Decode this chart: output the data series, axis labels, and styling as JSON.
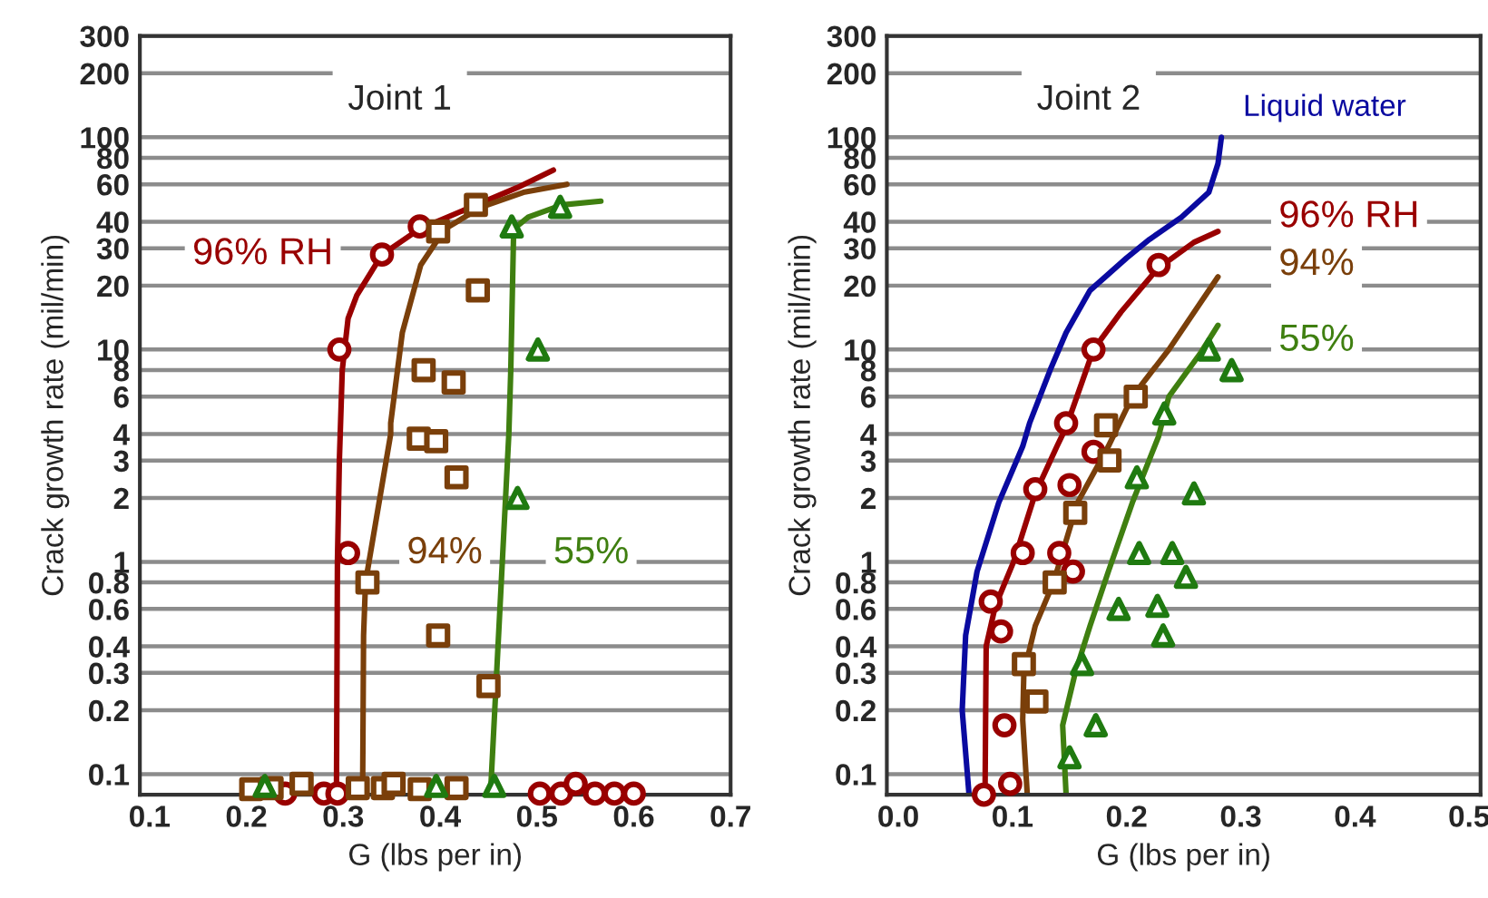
{
  "chart_data": [
    {
      "type": "line",
      "title": "Joint 1",
      "xlabel": "G (lbs per in)",
      "ylabel": "Crack growth rate (mil/min)",
      "log": "y",
      "grid": "y",
      "xlim": [
        0.09,
        0.7
      ],
      "xticks": [
        0.1,
        0.2,
        0.3,
        0.4,
        0.5,
        0.6,
        0.7
      ],
      "ylim": [
        0.08,
        300
      ],
      "yticks": [
        0.1,
        0.2,
        0.3,
        0.4,
        0.6,
        0.8,
        1,
        2,
        3,
        4,
        6,
        8,
        10,
        20,
        30,
        40,
        60,
        80,
        100,
        200,
        300
      ],
      "series": [
        {
          "name": "96% RH",
          "color": "#990000",
          "x": [
            0.293,
            0.294,
            0.296,
            0.299,
            0.305,
            0.314,
            0.34,
            0.379,
            0.48,
            0.517
          ],
          "values": [
            0.08,
            1,
            3,
            8,
            14,
            18,
            28,
            37,
            58,
            70
          ]
        },
        {
          "name": "94%",
          "color": "#7a3f0a",
          "x": [
            0.32,
            0.321,
            0.323,
            0.349,
            0.349,
            0.361,
            0.38,
            0.405,
            0.443,
            0.486,
            0.531
          ],
          "values": [
            0.08,
            0.45,
            0.8,
            4,
            4.5,
            12,
            25,
            37,
            47,
            55,
            60
          ]
        },
        {
          "name": "55%",
          "color": "#3f7f10",
          "x": [
            0.452,
            0.471,
            0.473,
            0.476,
            0.491,
            0.526,
            0.566
          ],
          "values": [
            0.08,
            4,
            8,
            37,
            42,
            48,
            50
          ]
        },
        {
          "type": "scatter",
          "marker": "circle",
          "color": "#990000",
          "x": [
            0.296,
            0.34,
            0.379,
            0.305,
            0.24,
            0.28,
            0.294,
            0.503,
            0.525,
            0.54,
            0.56,
            0.58,
            0.6
          ],
          "values": [
            10,
            28,
            38,
            1.1,
            0.081,
            0.081,
            0.081,
            0.081,
            0.081,
            0.09,
            0.081,
            0.081,
            0.081
          ]
        },
        {
          "type": "scatter",
          "marker": "square",
          "color": "#7a3f0a",
          "x": [
            0.437,
            0.398,
            0.439,
            0.383,
            0.414,
            0.378,
            0.396,
            0.417,
            0.325,
            0.398,
            0.45,
            0.205,
            0.226,
            0.257,
            0.315,
            0.341,
            0.352,
            0.379,
            0.417
          ],
          "values": [
            48,
            36,
            19,
            8,
            7,
            3.8,
            3.7,
            2.5,
            0.8,
            0.45,
            0.26,
            0.085,
            0.086,
            0.09,
            0.086,
            0.086,
            0.09,
            0.085,
            0.086
          ]
        },
        {
          "type": "scatter",
          "marker": "triangle",
          "color": "#1f7a10",
          "x": [
            0.474,
            0.524,
            0.501,
            0.48,
            0.219,
            0.396,
            0.456
          ],
          "values": [
            38,
            47,
            10,
            2,
            0.088,
            0.088,
            0.088
          ]
        }
      ]
    },
    {
      "type": "line",
      "title": "Joint 2",
      "xlabel": "G (lbs per in)",
      "ylabel": "Crack growth rate (mil/min)",
      "log": "y",
      "grid": "y",
      "xlim": [
        -0.01,
        0.51
      ],
      "xticks": [
        {
          "value": 0.0,
          "label": "0.0"
        },
        0.1,
        0.2,
        0.3,
        0.4,
        0.5
      ],
      "ylim": [
        0.08,
        300
      ],
      "yticks": [
        0.1,
        0.2,
        0.3,
        0.4,
        0.6,
        0.8,
        1,
        2,
        3,
        4,
        6,
        8,
        10,
        20,
        30,
        40,
        60,
        80,
        100,
        200,
        300
      ],
      "series": [
        {
          "name": "Liquid water",
          "color": "#0a0aa0",
          "x": [
            0.062,
            0.056,
            0.059,
            0.069,
            0.088,
            0.109,
            0.115,
            0.133,
            0.147,
            0.168,
            0.2,
            0.22,
            0.248,
            0.272,
            0.28,
            0.283
          ],
          "values": [
            0.08,
            0.2,
            0.45,
            0.9,
            1.9,
            3.5,
            4.5,
            8,
            12,
            19,
            27,
            33,
            42,
            55,
            75,
            100
          ]
        },
        {
          "name": "96% RH",
          "color": "#990000",
          "x": [
            0.076,
            0.077,
            0.085,
            0.101,
            0.12,
            0.139,
            0.147,
            0.171,
            0.195,
            0.227,
            0.259,
            0.28
          ],
          "values": [
            0.08,
            0.4,
            0.62,
            1,
            2.1,
            3.5,
            4.3,
            10,
            15,
            24,
            32,
            36
          ]
        },
        {
          "name": "94%",
          "color": "#7a3f0a",
          "x": [
            0.113,
            0.109,
            0.11,
            0.12,
            0.136,
            0.157,
            0.184,
            0.205,
            0.237,
            0.28
          ],
          "values": [
            0.08,
            0.18,
            0.3,
            0.5,
            0.8,
            1.9,
            3.5,
            6,
            10,
            22
          ]
        },
        {
          "name": "55%",
          "color": "#3f7f10",
          "x": [
            0.147,
            0.144,
            0.155,
            0.168,
            0.184,
            0.205,
            0.228,
            0.237,
            0.264,
            0.28
          ],
          "values": [
            0.08,
            0.17,
            0.3,
            0.5,
            0.9,
            1.9,
            3.9,
            6,
            9.5,
            13
          ]
        },
        {
          "type": "scatter",
          "marker": "circle",
          "color": "#990000",
          "x": [
            0.228,
            0.171,
            0.147,
            0.171,
            0.12,
            0.15,
            0.109,
            0.141,
            0.153,
            0.081,
            0.09,
            0.093,
            0.098,
            0.075
          ],
          "values": [
            25,
            10,
            4.5,
            3.3,
            2.2,
            2.3,
            1.1,
            1.1,
            0.9,
            0.65,
            0.47,
            0.17,
            0.09,
            0.08
          ]
        },
        {
          "type": "scatter",
          "marker": "square",
          "color": "#7a3f0a",
          "x": [
            0.208,
            0.182,
            0.185,
            0.155,
            0.137,
            0.11,
            0.121
          ],
          "values": [
            6,
            4.4,
            3,
            1.7,
            0.8,
            0.33,
            0.22
          ]
        },
        {
          "type": "scatter",
          "marker": "triangle",
          "color": "#1f7a10",
          "x": [
            0.272,
            0.292,
            0.233,
            0.209,
            0.259,
            0.211,
            0.24,
            0.252,
            0.193,
            0.227,
            0.232,
            0.161,
            0.173,
            0.15
          ],
          "values": [
            10,
            8,
            5,
            2.5,
            2.1,
            1.1,
            1.1,
            0.85,
            0.6,
            0.62,
            0.45,
            0.33,
            0.17,
            0.12
          ]
        }
      ]
    }
  ]
}
